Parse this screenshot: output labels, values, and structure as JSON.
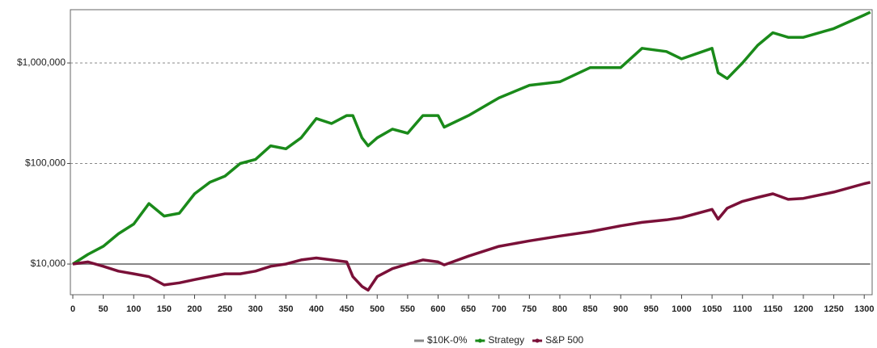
{
  "chart_data": {
    "type": "line",
    "log_y": true,
    "grid": true,
    "legend": "bottom",
    "xlim": [
      -4,
      1313
    ],
    "ylim": [
      4955,
      3390000
    ],
    "xticks": [
      0,
      50,
      100,
      150,
      200,
      250,
      300,
      350,
      400,
      450,
      500,
      550,
      600,
      650,
      700,
      750,
      800,
      850,
      900,
      950,
      1000,
      1050,
      1100,
      1150,
      1200,
      1250,
      1300
    ],
    "yticks": [
      {
        "value": 10000,
        "label": "$10,000"
      },
      {
        "value": 100000,
        "label": "$100,000"
      },
      {
        "value": 1000000,
        "label": "$1,000,000"
      }
    ],
    "x": [
      0,
      25,
      50,
      75,
      100,
      125,
      150,
      175,
      200,
      225,
      250,
      275,
      300,
      325,
      350,
      375,
      400,
      425,
      450,
      460,
      475,
      485,
      500,
      525,
      550,
      575,
      600,
      610,
      650,
      700,
      750,
      800,
      850,
      900,
      935,
      975,
      1000,
      1050,
      1060,
      1075,
      1100,
      1125,
      1150,
      1175,
      1200,
      1250,
      1300,
      1310
    ],
    "series": [
      {
        "name": "$10K-0%",
        "color": "#888888",
        "values": [
          10000,
          10000,
          10000,
          10000,
          10000,
          10000,
          10000,
          10000,
          10000,
          10000,
          10000,
          10000,
          10000,
          10000,
          10000,
          10000,
          10000,
          10000,
          10000,
          10000,
          10000,
          10000,
          10000,
          10000,
          10000,
          10000,
          10000,
          10000,
          10000,
          10000,
          10000,
          10000,
          10000,
          10000,
          10000,
          10000,
          10000,
          10000,
          10000,
          10000,
          10000,
          10000,
          10000,
          10000,
          10000,
          10000,
          10000,
          10000
        ]
      },
      {
        "name": "Strategy",
        "color": "#1a8a1a",
        "values": [
          10000,
          12500,
          15000,
          20000,
          25000,
          40000,
          30000,
          32000,
          50000,
          65000,
          75000,
          100000,
          110000,
          150000,
          140000,
          180000,
          280000,
          250000,
          300000,
          300000,
          180000,
          150000,
          180000,
          220000,
          200000,
          300000,
          300000,
          230000,
          300000,
          450000,
          600000,
          650000,
          900000,
          900000,
          1400000,
          1300000,
          1100000,
          1400000,
          800000,
          700000,
          1000000,
          1500000,
          2000000,
          1800000,
          1800000,
          2200000,
          3000000,
          3200000
        ]
      },
      {
        "name": "S&P 500",
        "color": "#7a1038",
        "values": [
          10000,
          10500,
          9500,
          8500,
          8000,
          7500,
          6200,
          6500,
          7000,
          7500,
          8000,
          8000,
          8500,
          9500,
          10000,
          11000,
          11500,
          11000,
          10500,
          7500,
          6000,
          5500,
          7500,
          9000,
          10000,
          11000,
          10500,
          9800,
          12000,
          15000,
          17000,
          19000,
          21000,
          24000,
          26000,
          27500,
          29000,
          35000,
          28000,
          36000,
          42000,
          46000,
          50000,
          44000,
          45000,
          52000,
          63000,
          65000
        ]
      }
    ]
  }
}
